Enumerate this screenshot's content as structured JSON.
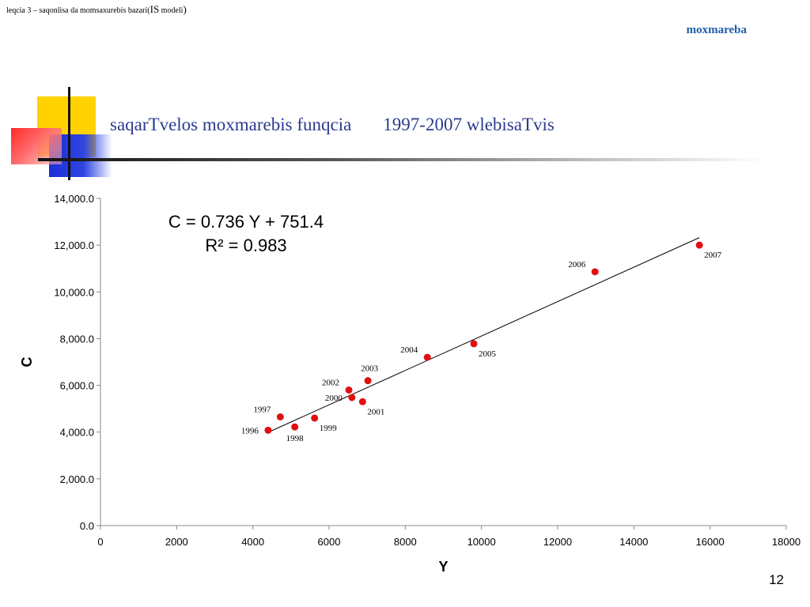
{
  "header": {
    "left_text": "leqcia 3 – saqonlisa da momsaxurebis bazari(",
    "left_is": "IS",
    "left_modeli": " modeli",
    "left_close": ")",
    "right_text": "moxmareba"
  },
  "slide": {
    "title_part1": "saqarTvelos moxmarebis funqcia",
    "title_part2": "1997-2007 wlebisaTvis",
    "page_number": "12"
  },
  "chart_data": {
    "type": "scatter",
    "xlabel": "Y",
    "ylabel": "C",
    "xlim": [
      0,
      18000
    ],
    "ylim": [
      0,
      14000
    ],
    "xticks": [
      0,
      2000,
      4000,
      6000,
      8000,
      10000,
      12000,
      14000,
      16000,
      18000
    ],
    "xtick_labels": [
      "0",
      "2000",
      "4000",
      "6000",
      "8000",
      "10000",
      "12000",
      "14000",
      "16000",
      "18000"
    ],
    "yticks": [
      0,
      2000,
      4000,
      6000,
      8000,
      10000,
      12000,
      14000
    ],
    "ytick_labels": [
      "0.0",
      "2,000.0",
      "4,000.0",
      "6,000.0",
      "8,000.0",
      "10,000.0",
      "12,000.0",
      "14,000.0"
    ],
    "grid": false,
    "point_color": "#e01010",
    "points": [
      {
        "label": "1996",
        "x": 4400,
        "y": 4080,
        "label_pos": "left"
      },
      {
        "label": "1997",
        "x": 4720,
        "y": 4650,
        "label_pos": "upper-left"
      },
      {
        "label": "1998",
        "x": 5100,
        "y": 4220,
        "label_pos": "below"
      },
      {
        "label": "1999",
        "x": 5620,
        "y": 4600,
        "label_pos": "lower-right"
      },
      {
        "label": "2000",
        "x": 6600,
        "y": 5480,
        "label_pos": "left"
      },
      {
        "label": "2001",
        "x": 6880,
        "y": 5300,
        "label_pos": "lower-right"
      },
      {
        "label": "2002",
        "x": 6520,
        "y": 5800,
        "label_pos": "upper-left"
      },
      {
        "label": "2003",
        "x": 7020,
        "y": 6200,
        "label_pos": "above"
      },
      {
        "label": "2004",
        "x": 8580,
        "y": 7200,
        "label_pos": "upper-left"
      },
      {
        "label": "2005",
        "x": 9800,
        "y": 7780,
        "label_pos": "lower-right"
      },
      {
        "label": "2006",
        "x": 12980,
        "y": 10860,
        "label_pos": "upper-left"
      },
      {
        "label": "2007",
        "x": 15720,
        "y": 12000,
        "label_pos": "lower-right"
      }
    ],
    "trendline": {
      "slope": 0.736,
      "intercept": 751.4,
      "x_range": [
        4400,
        15720
      ]
    },
    "equation": "C = 0.736 Y + 751.4",
    "r_squared": "R² = 0.983"
  }
}
